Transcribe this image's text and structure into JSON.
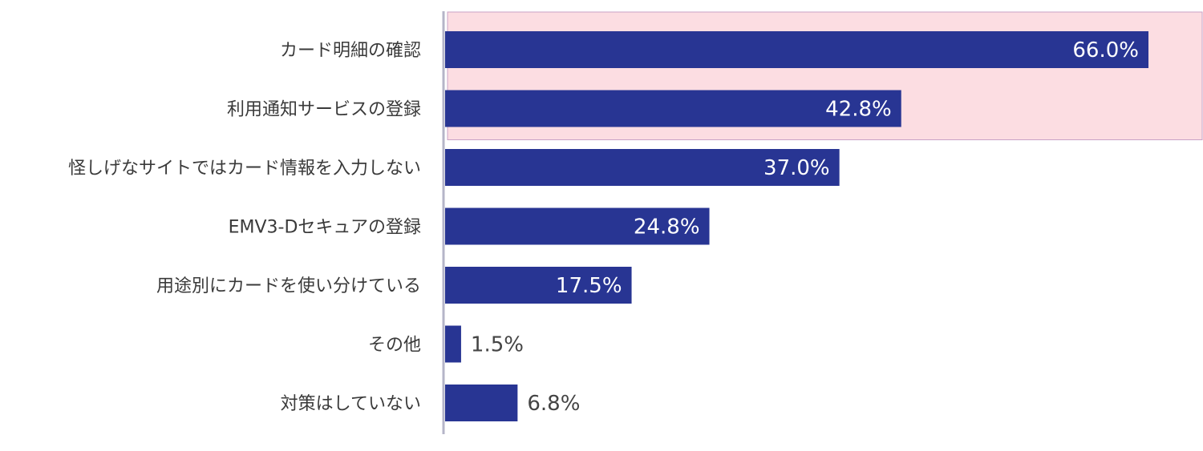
{
  "chart_data": {
    "type": "bar",
    "orientation": "horizontal",
    "categories": [
      "カード明細の確認",
      "利用通知サービスの登録",
      "怪しげなサイトではカード情報を入力しない",
      "EMV3-Dセキュアの登録",
      "用途別にカードを使い分けている",
      "その他",
      "対策はしていない"
    ],
    "values": [
      66.0,
      42.8,
      37.0,
      24.8,
      17.5,
      1.5,
      6.8
    ],
    "value_labels": [
      "66.0%",
      "42.8%",
      "37.0%",
      "24.8%",
      "17.5%",
      "1.5%",
      "6.8%"
    ],
    "xlim": [
      0,
      71
    ],
    "grid": false,
    "highlight_categories": [
      0,
      1
    ],
    "colors": {
      "bar": "#283593",
      "highlight": "#fcdde2",
      "highlight_border": "#c9a2c6",
      "axis": "#b5b5c8",
      "label_inside": "#ffffff",
      "label_outside": "#444444",
      "category_text": "#3a3a3a"
    }
  }
}
